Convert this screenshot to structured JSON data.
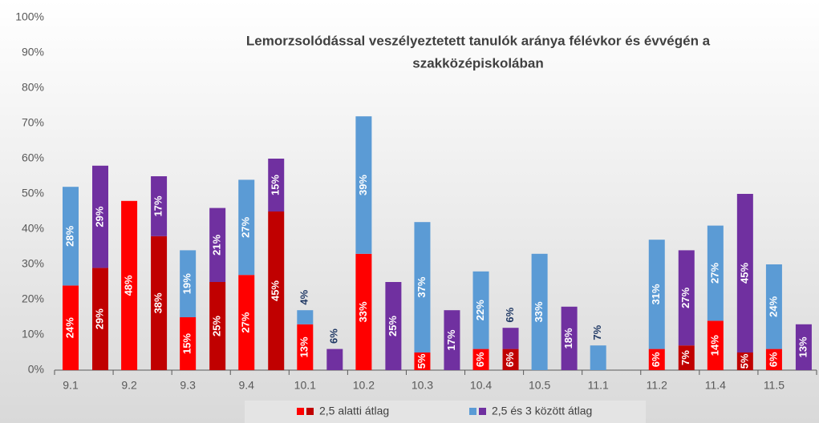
{
  "chart_data": {
    "type": "bar",
    "title": [
      "Lemorzsolódással veszélyeztetett tanulók aránya félévkor és évvégén a",
      "szakközépiskolában"
    ],
    "categories": [
      "9.1",
      "9.2",
      "9.3",
      "9.4",
      "10.1",
      "10.2",
      "10.3",
      "10.4",
      "10.5",
      "11.1",
      "11.2",
      "11.4",
      "11.5"
    ],
    "series": [
      {
        "name": "2,5 alatti átlag",
        "colors": [
          "#ff0000",
          "#c00000"
        ],
        "values": [
          [
            24,
            29
          ],
          [
            48,
            38
          ],
          [
            15,
            25
          ],
          [
            27,
            45
          ],
          [
            13,
            null
          ],
          [
            33,
            null
          ],
          [
            5,
            null
          ],
          [
            6,
            6
          ],
          [
            null,
            null
          ],
          [
            null,
            null
          ],
          [
            6,
            7
          ],
          [
            14,
            5
          ],
          [
            6,
            null
          ]
        ],
        "value_labels": [
          [
            "24%",
            "29%"
          ],
          [
            "48%",
            "38%"
          ],
          [
            "15%",
            "25%"
          ],
          [
            "27%",
            "45%"
          ],
          [
            "13%",
            null
          ],
          [
            "33%",
            null
          ],
          [
            "5%",
            null
          ],
          [
            "6%",
            "6%"
          ],
          [
            null,
            null
          ],
          [
            null,
            null
          ],
          [
            "6%",
            "7%"
          ],
          [
            "14%",
            "5%"
          ],
          [
            "6%",
            null
          ]
        ]
      },
      {
        "name": "2,5 és 3 között átlag",
        "colors": [
          "#5b9bd5",
          "#7030a0"
        ],
        "values": [
          [
            28,
            29
          ],
          [
            null,
            17
          ],
          [
            19,
            21
          ],
          [
            27,
            15
          ],
          [
            4,
            6
          ],
          [
            39,
            25
          ],
          [
            37,
            17
          ],
          [
            22,
            6
          ],
          [
            33,
            18
          ],
          [
            7,
            null
          ],
          [
            31,
            27
          ],
          [
            27,
            45
          ],
          [
            24,
            13
          ]
        ],
        "value_labels": [
          [
            "28%",
            "29%"
          ],
          [
            null,
            "17%"
          ],
          [
            "19%",
            "21%"
          ],
          [
            "27%",
            "15%"
          ],
          [
            "4%",
            "6%"
          ],
          [
            "39%",
            "25%"
          ],
          [
            "37%",
            "17%"
          ],
          [
            "22%",
            "6%"
          ],
          [
            "33%",
            "18%"
          ],
          [
            "7%",
            null
          ],
          [
            "31%",
            "27%"
          ],
          [
            "27%",
            "45%"
          ],
          [
            "24%",
            "13%"
          ]
        ]
      }
    ],
    "ylim": [
      0,
      100
    ],
    "yticks": [
      {
        "value": 0,
        "label": "0%"
      },
      {
        "value": 10,
        "label": "10%"
      },
      {
        "value": 20,
        "label": "20%"
      },
      {
        "value": 30,
        "label": "30%"
      },
      {
        "value": 40,
        "label": "40%"
      },
      {
        "value": 50,
        "label": "50%"
      },
      {
        "value": 60,
        "label": "60%"
      },
      {
        "value": 70,
        "label": "70%"
      },
      {
        "value": 80,
        "label": "80%"
      },
      {
        "value": 90,
        "label": "90%"
      },
      {
        "value": 100,
        "label": "100%"
      }
    ],
    "legend": "bottom"
  }
}
